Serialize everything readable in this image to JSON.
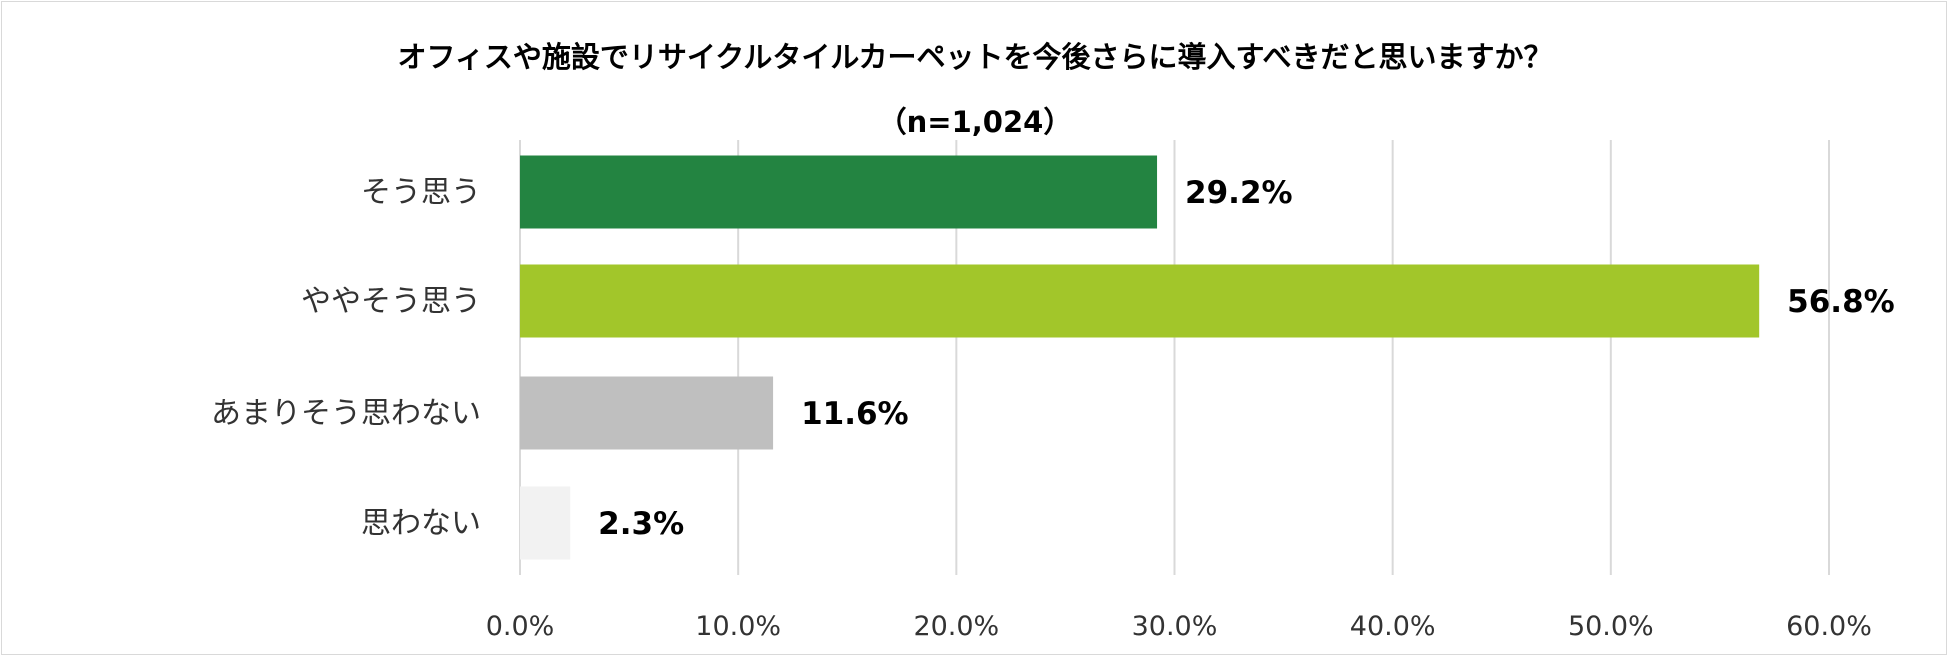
{
  "chart_data": {
    "type": "bar",
    "orientation": "horizontal",
    "title": "オフィスや施設でリサイクルタイルカーペットを今後さらに導入すべきだと思いますか？",
    "subtitle": "（n=1,024）",
    "categories": [
      "そう思う",
      "ややそう思う",
      "あまりそう思わない",
      "思わない"
    ],
    "values": [
      29.2,
      56.8,
      11.6,
      2.3
    ],
    "data_labels": [
      "29.2%",
      "56.8%",
      "11.6%",
      "2.3%"
    ],
    "bar_colors": [
      "#238441",
      "#a2c62a",
      "#bfbfbf",
      "#f2f2f2"
    ],
    "xlim": [
      0,
      60
    ],
    "xticks": [
      0,
      10,
      20,
      30,
      40,
      50,
      60
    ],
    "xtick_labels": [
      "0.0%",
      "10.0%",
      "20.0%",
      "30.0%",
      "40.0%",
      "50.0%",
      "60.0%"
    ],
    "grid": true,
    "gridline_color": "#d9d9d9",
    "legend": "none",
    "xlabel": "",
    "ylabel": ""
  }
}
